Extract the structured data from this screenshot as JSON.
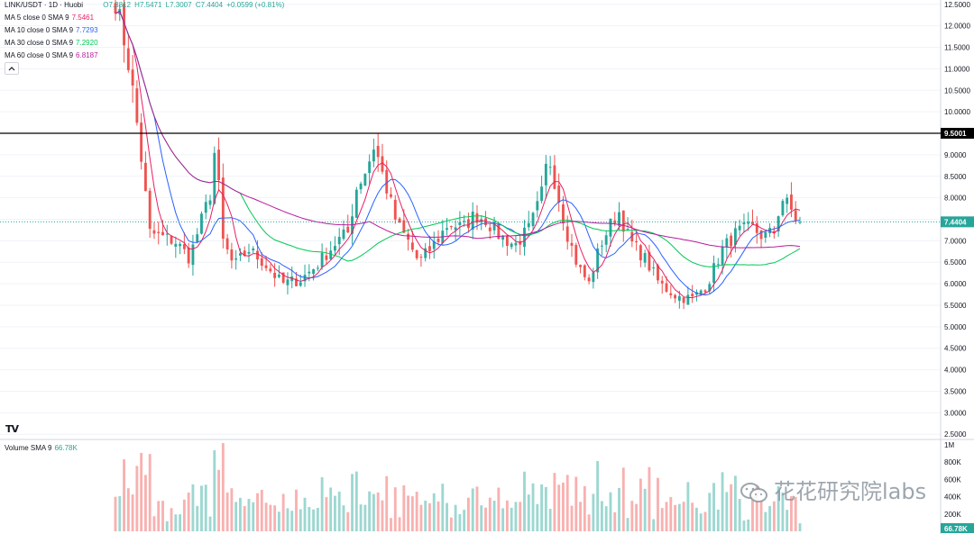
{
  "header": {
    "symbol": "LINK/USDT · 1D · Huobi",
    "ohlc": {
      "o": "O7.3812",
      "h": "H7.5471",
      "l": "L7.3007",
      "c": "C7.4404",
      "change": "+0.0599 (+0.81%)"
    }
  },
  "ma_legend": [
    {
      "label": "MA 5 close 0 SMA 9",
      "value": "7.5461",
      "color": "#e91e63"
    },
    {
      "label": "MA 10 close 0 SMA 9",
      "value": "7.7293",
      "color": "#2962ff"
    },
    {
      "label": "MA 30 close 0 SMA 9",
      "value": "7.2920",
      "color": "#00c853"
    },
    {
      "label": "MA 60 close 0 SMA 9",
      "value": "6.8187",
      "color": "#b71c9c"
    }
  ],
  "volume_legend": {
    "label": "Volume SMA 9",
    "value": "66.78K"
  },
  "tv_logo": "TV",
  "watermark": "花花研究院labs",
  "colors": {
    "up": "#26a69a",
    "down": "#ef5350",
    "grid": "#f0f3fa",
    "axis_text": "#131722",
    "hline": "#000000"
  },
  "chart_data": {
    "type": "candlestick",
    "price_axis": {
      "ticks": [
        "12.5000",
        "12.0000",
        "11.5000",
        "11.0000",
        "10.5000",
        "10.0000",
        "9.5000",
        "9.0000",
        "8.5000",
        "8.0000",
        "7.5000",
        "7.0000",
        "6.5000",
        "6.0000",
        "5.5000",
        "5.0000",
        "4.5000",
        "4.0000",
        "3.5000",
        "3.0000",
        "2.5000"
      ],
      "ylim": [
        2.4,
        12.6
      ]
    },
    "volume_axis": {
      "ticks": [
        "1M",
        "800K",
        "600K",
        "400K",
        "200K"
      ],
      "ylim": [
        0,
        1050000
      ]
    },
    "horizontal_line": {
      "value": 9.5001,
      "label": "9.5001"
    },
    "last_price": {
      "value": 7.4404,
      "label": "7.4404"
    },
    "last_volume_label": "66.78K",
    "candle_count": 160,
    "close_path": [
      [
        0,
        12.6
      ],
      [
        3,
        11.4
      ],
      [
        5,
        10.3
      ],
      [
        8,
        8.2
      ],
      [
        9,
        7.2
      ],
      [
        12,
        7.1
      ],
      [
        16,
        7.0
      ],
      [
        20,
        6.6
      ],
      [
        23,
        7.4
      ],
      [
        26,
        8.2
      ],
      [
        27,
        9.3
      ],
      [
        29,
        7.0
      ],
      [
        32,
        6.4
      ],
      [
        36,
        6.8
      ],
      [
        40,
        6.5
      ],
      [
        45,
        6.0
      ],
      [
        50,
        6.1
      ],
      [
        54,
        6.4
      ],
      [
        57,
        6.7
      ],
      [
        60,
        7.0
      ],
      [
        63,
        7.2
      ],
      [
        65,
        8.2
      ],
      [
        68,
        8.7
      ],
      [
        70,
        9.25
      ],
      [
        72,
        8.6
      ],
      [
        74,
        8.0
      ],
      [
        76,
        7.4
      ],
      [
        79,
        7.0
      ],
      [
        82,
        6.5
      ],
      [
        86,
        6.9
      ],
      [
        90,
        7.4
      ],
      [
        94,
        7.3
      ],
      [
        97,
        7.6
      ],
      [
        100,
        7.5
      ],
      [
        104,
        7.1
      ],
      [
        108,
        6.9
      ],
      [
        112,
        7.3
      ],
      [
        115,
        8.0
      ],
      [
        117,
        9.0
      ],
      [
        119,
        8.3
      ],
      [
        122,
        7.2
      ],
      [
        125,
        6.4
      ],
      [
        128,
        6.0
      ],
      [
        131,
        6.9
      ],
      [
        134,
        7.4
      ],
      [
        136,
        7.7
      ],
      [
        139,
        7.0
      ],
      [
        143,
        6.6
      ],
      [
        147,
        6.0
      ],
      [
        152,
        5.7
      ],
      [
        156,
        5.65
      ],
      [
        160,
        6.0
      ],
      [
        164,
        6.8
      ],
      [
        168,
        7.2
      ],
      [
        172,
        7.3
      ],
      [
        175,
        7.1
      ],
      [
        178,
        7.2
      ],
      [
        180,
        8.0
      ],
      [
        182,
        7.8
      ],
      [
        184,
        7.5
      ],
      [
        185,
        7.44
      ]
    ],
    "ma": [
      {
        "name": "MA 5",
        "period": 5,
        "last": 7.5461
      },
      {
        "name": "MA 10",
        "period": 10,
        "last": 7.7293
      },
      {
        "name": "MA 30",
        "period": 30,
        "last": 7.292
      },
      {
        "name": "MA 60",
        "period": 60,
        "last": 6.8187
      }
    ]
  }
}
